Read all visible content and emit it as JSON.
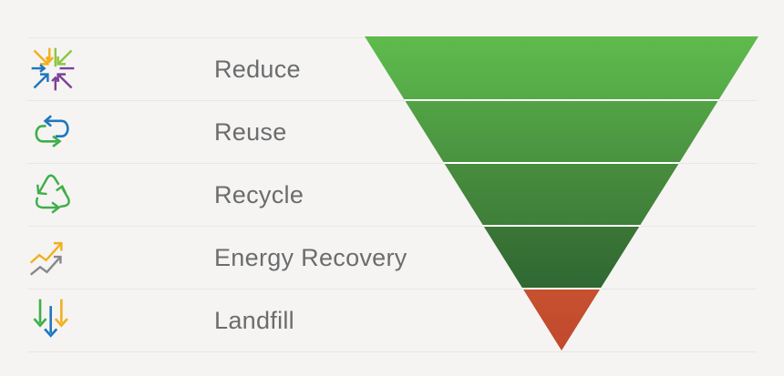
{
  "background_color": "#f5f4f2",
  "divider_color": "#e8e7e5",
  "text_color": "#6b6c6e",
  "rows": [
    {
      "label": "Reduce",
      "icon": "reduce-icon"
    },
    {
      "label": "Reuse",
      "icon": "reuse-icon"
    },
    {
      "label": "Recycle",
      "icon": "recycle-icon"
    },
    {
      "label": "Energy Recovery",
      "icon": "energy-recovery-icon"
    },
    {
      "label": "Landfill",
      "icon": "landfill-icon"
    }
  ],
  "funnel": {
    "type": "inverted-pyramid",
    "separator_color": "#ffffff",
    "levels": [
      {
        "label": "Reduce",
        "color_top": "#5fbb4d",
        "color_bottom": "#55aa47"
      },
      {
        "label": "Reuse",
        "color_top": "#52a345",
        "color_bottom": "#4a9340"
      },
      {
        "label": "Recycle",
        "color_top": "#478d3e",
        "color_bottom": "#3f7f39"
      },
      {
        "label": "Energy Recovery",
        "color_top": "#3b7636",
        "color_bottom": "#2f6832"
      },
      {
        "label": "Landfill",
        "color_top": "#c6512f",
        "color_bottom": "#c1482d"
      }
    ]
  },
  "icon_colors": {
    "yellow": "#f2b01e",
    "lime": "#8dc63f",
    "green": "#3fae49",
    "blue": "#1e77bd",
    "purple": "#7b4199",
    "gray": "#87898c"
  }
}
